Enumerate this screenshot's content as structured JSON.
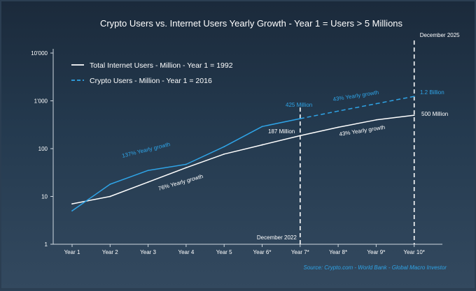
{
  "chart_data": {
    "type": "line",
    "title": "Crypto Users vs. Internet Users Yearly Growth - Year 1 = Users > 5 Millions",
    "yscale": "log",
    "ylim": [
      1,
      10000
    ],
    "y_ticks": [
      "1",
      "10",
      "100",
      "1'000",
      "10'000"
    ],
    "categories": [
      "Year 1",
      "Year 2",
      "Year 3",
      "Year 4",
      "Year 5",
      "Year 6*",
      "Year 7*",
      "Year 8*",
      "Year 9*",
      "Year 10*"
    ],
    "series": [
      {
        "name": "Total Internet Users - Million - Year 1 = 1992",
        "color": "#ffffff",
        "style": "solid",
        "values": [
          7,
          10,
          20,
          40,
          77,
          120,
          187,
          280,
          400,
          500
        ]
      },
      {
        "name": "Crypto Users - Million - Year 1 = 2016",
        "color": "#2fa4e7",
        "style": "solid",
        "values": [
          5,
          18,
          35,
          47,
          110,
          290,
          425,
          null,
          null,
          null
        ]
      },
      {
        "name": "Crypto Users - Million - Year 1 = 2016",
        "color": "#2fa4e7",
        "style": "dashed",
        "legend": false,
        "values": [
          null,
          null,
          null,
          null,
          null,
          null,
          425,
          610,
          870,
          1240
        ]
      }
    ],
    "legend": [
      {
        "label": "Total Internet Users - Million - Year 1 = 1992",
        "color": "#ffffff",
        "style": "solid"
      },
      {
        "label": "Crypto Users - Million - Year 1 = 2016",
        "color": "#2fa4e7",
        "style": "dashed"
      }
    ],
    "legend_position": "top-left",
    "vlines": [
      {
        "label": "December 2022",
        "at": "Year 7*"
      },
      {
        "label": "December 2025",
        "at": "Year 10*"
      }
    ],
    "annotations": [
      {
        "text": "137% Yearly growth",
        "color": "#2fa4e7"
      },
      {
        "text": "76% Yearly growth",
        "color": "#ffffff"
      },
      {
        "text": "425 Million",
        "color": "#2fa4e7"
      },
      {
        "text": "187 Million",
        "color": "#ffffff"
      },
      {
        "text": "43% Yearly growth",
        "color": "#2fa4e7"
      },
      {
        "text": "43% Yearly growth",
        "color": "#ffffff"
      },
      {
        "text": "1.2 Billion",
        "color": "#2fa4e7"
      },
      {
        "text": "500 Million",
        "color": "#ffffff"
      }
    ],
    "source": "Source: Crypto.com - World Bank - Global Macro Investor",
    "grid": false
  }
}
